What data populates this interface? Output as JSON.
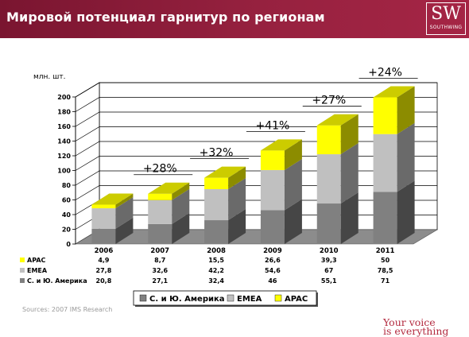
{
  "header": {
    "title": "Мировой потенциал гарнитур по регионам",
    "logo_main": "SW",
    "logo_sub": "SOUTHWING"
  },
  "footer": {
    "source": "Sources: 2007 IMS Research",
    "slogan_line1": "Your voice",
    "slogan_line2": "is everything"
  },
  "colors": {
    "americas": "#808080",
    "emea": "#c0c0c0",
    "apac": "#ffff00",
    "header": "#96213f"
  },
  "chart_data": {
    "type": "bar",
    "stacked": true,
    "three_d": true,
    "ylabel": "млн. шт.",
    "ylim": [
      0,
      200
    ],
    "yticks": [
      0,
      20,
      40,
      60,
      80,
      100,
      120,
      140,
      160,
      180,
      200
    ],
    "grid": true,
    "legend_position": "bottom",
    "categories": [
      "2006",
      "2007",
      "2008",
      "2009",
      "2010",
      "2011"
    ],
    "series": [
      {
        "name": "С. и Ю. Америка",
        "values": [
          20.8,
          27.1,
          32.4,
          46,
          55.1,
          71
        ],
        "labels": [
          "20,8",
          "27,1",
          "32,4",
          "46",
          "55,1",
          "71"
        ]
      },
      {
        "name": "EMEA",
        "values": [
          27.8,
          32.6,
          42.2,
          54.6,
          67,
          78.5
        ],
        "labels": [
          "27,8",
          "32,6",
          "42,2",
          "54,6",
          "67",
          "78,5"
        ]
      },
      {
        "name": "APAC",
        "values": [
          4.9,
          8.7,
          15.5,
          26.6,
          39.3,
          50
        ],
        "labels": [
          "4,9",
          "8,7",
          "15,5",
          "26,6",
          "39,3",
          "50"
        ]
      }
    ],
    "table_rows": [
      "APAC",
      "EMEA",
      "С. и Ю. Америка"
    ],
    "annotations": [
      {
        "text": "+28%",
        "category": "2007"
      },
      {
        "text": "+32%",
        "category": "2008"
      },
      {
        "text": "+41%",
        "category": "2009"
      },
      {
        "text": "+27%",
        "category": "2010"
      },
      {
        "text": "+24%",
        "category": "2011"
      }
    ]
  }
}
